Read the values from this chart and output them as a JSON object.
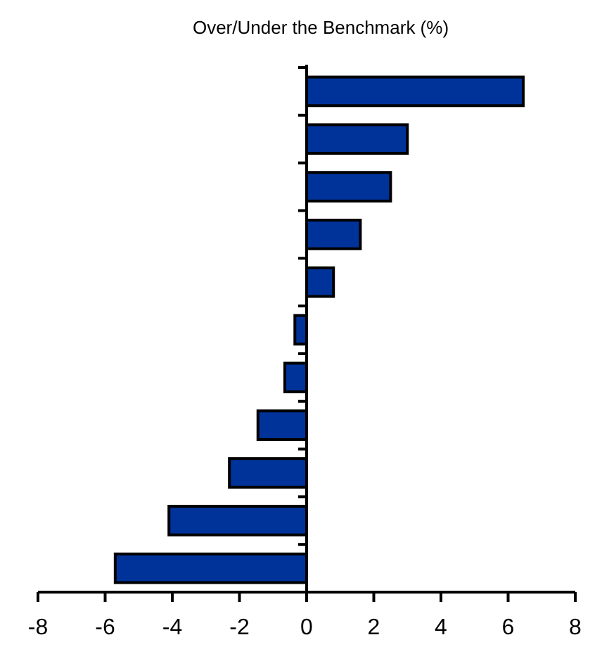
{
  "chart_data": {
    "type": "bar",
    "orientation": "horizontal",
    "title": "Over/Under the Benchmark (%)",
    "categories": [
      null,
      null,
      null,
      null,
      null,
      null,
      null,
      null,
      null,
      null,
      null
    ],
    "values": [
      6.45,
      3.0,
      2.5,
      1.6,
      0.8,
      -0.35,
      -0.65,
      -1.45,
      -2.3,
      -4.1,
      -5.7
    ],
    "color": "#003399",
    "xlim": [
      -8,
      8
    ],
    "xticks": [
      -8,
      -6,
      -4,
      -2,
      0,
      2,
      4,
      6,
      8
    ]
  }
}
